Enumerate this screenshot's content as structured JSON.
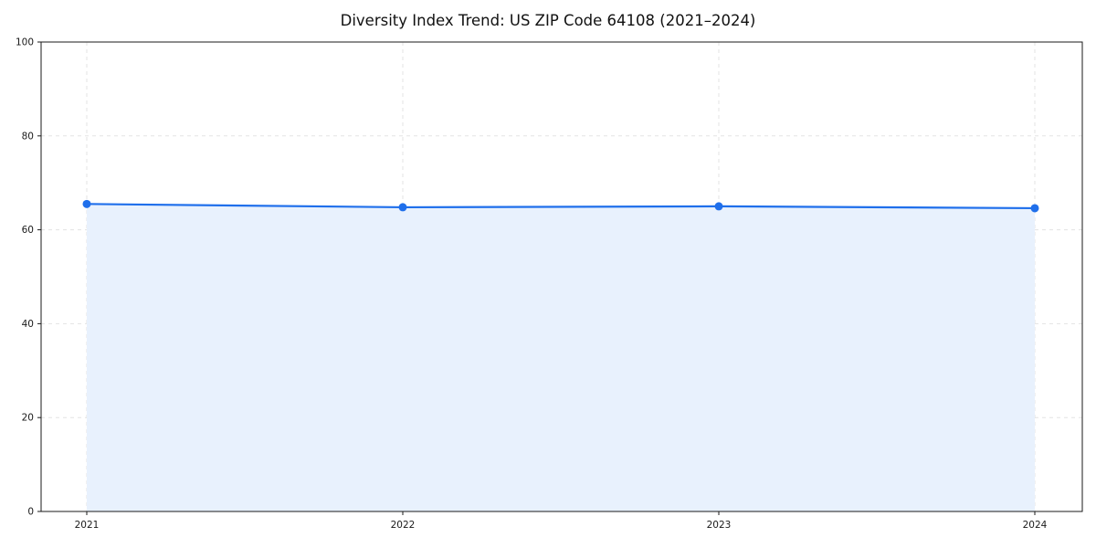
{
  "chart_data": {
    "type": "area",
    "title": "Diversity Index Trend: US ZIP Code 64108 (2021–2024)",
    "categories": [
      "2021",
      "2022",
      "2023",
      "2024"
    ],
    "series": [
      {
        "name": "Diversity Index",
        "values": [
          65.5,
          64.8,
          65.0,
          64.6
        ]
      }
    ],
    "xlabel": "",
    "ylabel": "",
    "ylim": [
      0,
      100
    ],
    "yticks": [
      0,
      20,
      40,
      60,
      80,
      100
    ],
    "grid": true,
    "grid_style": "dashed",
    "legend": "none",
    "line_color": "#1f6feb",
    "marker_color": "#1f6feb",
    "fill_color": "#e8f1fd",
    "grid_color": "#e3e3e3",
    "axis_color": "#1a1a1a",
    "tick_label_color": "#1a1a1a"
  }
}
